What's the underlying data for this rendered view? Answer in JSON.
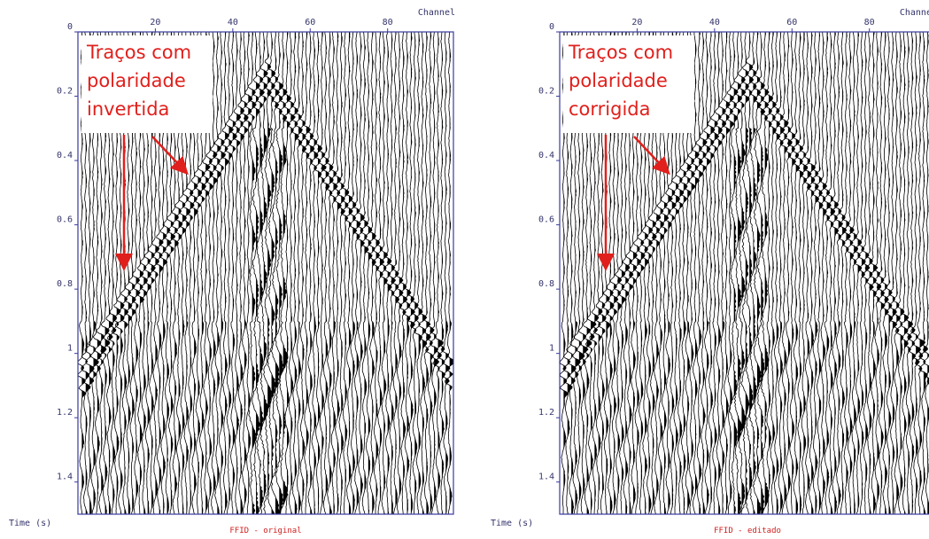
{
  "chart_data": [
    {
      "type": "seismic",
      "title": "FFID - original",
      "x_label": "Channel",
      "y_label": "Time (s)",
      "annotation": [
        "Traços com",
        "polaridade",
        "invertida"
      ],
      "xlim": [
        0,
        97
      ],
      "xticks": [
        20,
        40,
        60,
        80
      ],
      "ylim": [
        0,
        1.5
      ],
      "yticks": [
        0,
        0.2,
        0.4,
        0.6,
        0.8,
        1,
        1.2,
        1.4
      ],
      "color": "#000000"
    },
    {
      "type": "seismic",
      "title": "FFID - editado",
      "x_label": "Channel",
      "y_label": "Time (s)",
      "annotation": [
        "Traços com",
        "polaridade",
        "corrigida"
      ],
      "xlim": [
        0,
        97
      ],
      "xticks": [
        20,
        40,
        60,
        80
      ],
      "ylim": [
        0,
        1.5
      ],
      "yticks": [
        0,
        0.2,
        0.4,
        0.6,
        0.8,
        1,
        1.2,
        1.4
      ],
      "color": "#000000"
    }
  ]
}
